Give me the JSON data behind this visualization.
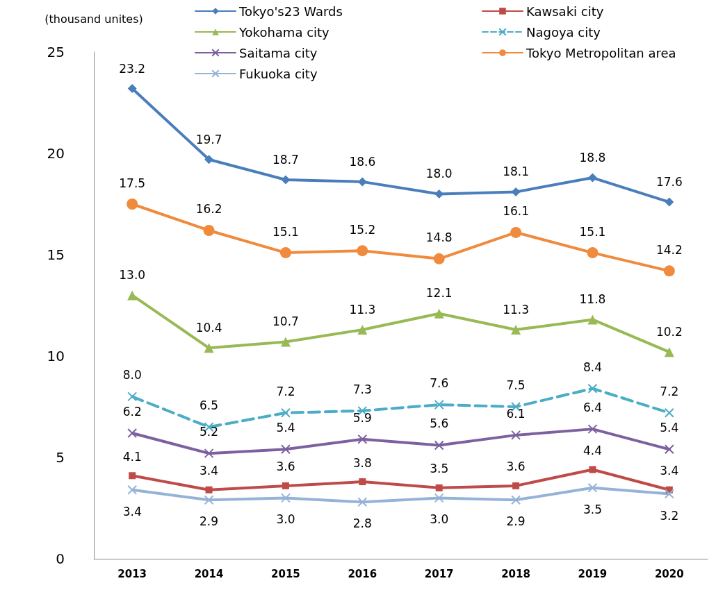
{
  "chart_data": {
    "type": "line",
    "ylabel": "(thousand unites)",
    "categories": [
      "2013",
      "2014",
      "2015",
      "2016",
      "2017",
      "2018",
      "2019",
      "2020"
    ],
    "series": [
      {
        "name": "Tokyo's23 Wards",
        "color": "#4a7ebb",
        "marker": "diamond",
        "line_style": "solid",
        "values": [
          23.2,
          19.7,
          18.7,
          18.6,
          18.0,
          18.1,
          18.8,
          17.6
        ],
        "value_labels": [
          "23.2",
          "19.7",
          "18.7",
          "18.6",
          "18.0",
          "18.1",
          "18.8",
          "17.6"
        ]
      },
      {
        "name": "Kawsaki city",
        "color": "#be4b48",
        "marker": "square",
        "line_style": "solid",
        "values": [
          4.1,
          3.4,
          3.6,
          3.8,
          3.5,
          3.6,
          4.4,
          3.4
        ],
        "value_labels": [
          "4.1",
          "3.4",
          "3.6",
          "3.8",
          "3.5",
          "3.6",
          "4.4",
          "3.4"
        ]
      },
      {
        "name": "Yokohama city",
        "color": "#98b954",
        "marker": "triangle",
        "line_style": "solid",
        "values": [
          13.0,
          10.4,
          10.7,
          11.3,
          12.1,
          11.3,
          11.8,
          10.2
        ],
        "value_labels": [
          "13.0",
          "10.4",
          "10.7",
          "11.3",
          "12.1",
          "11.3",
          "11.8",
          "10.2"
        ]
      },
      {
        "name": "Nagoya city",
        "color": "#4bacc6",
        "marker": "cross",
        "line_style": "dashed",
        "values": [
          8.0,
          6.5,
          7.2,
          7.3,
          7.6,
          7.5,
          8.4,
          7.2
        ],
        "value_labels": [
          "8.0",
          "6.5",
          "7.2",
          "7.3",
          "7.6",
          "7.5",
          "8.4",
          "7.2"
        ]
      },
      {
        "name": "Saitama city",
        "color": "#7d60a0",
        "marker": "cross",
        "line_style": "solid",
        "values": [
          6.2,
          5.2,
          5.4,
          5.9,
          5.6,
          6.1,
          6.4,
          5.4
        ],
        "value_labels": [
          "6.2",
          "5.2",
          "5.4",
          "5.9",
          "5.6",
          "6.1",
          "6.4",
          "5.4"
        ]
      },
      {
        "name": "Tokyo Metropolitan area",
        "color": "#f08a3c",
        "marker": "circle",
        "line_style": "solid",
        "values": [
          17.5,
          16.2,
          15.1,
          15.2,
          14.8,
          16.1,
          15.1,
          14.2
        ],
        "value_labels": [
          "17.5",
          "16.2",
          "15.1",
          "15.2",
          "14.8",
          "16.1",
          "15.1",
          "14.2"
        ]
      },
      {
        "name": "Fukuoka city",
        "color": "#95b3d7",
        "marker": "cross",
        "line_style": "solid",
        "values": [
          3.4,
          2.9,
          3.0,
          2.8,
          3.0,
          2.9,
          3.5,
          3.2
        ],
        "value_labels": [
          "3.4",
          "2.9",
          "3.0",
          "2.8",
          "3.0",
          "2.9",
          "3.5",
          "3.2"
        ]
      }
    ],
    "ylim": [
      0,
      25
    ],
    "yticks": [
      0,
      5,
      10,
      15,
      20,
      25
    ],
    "grid": false,
    "legend": "top"
  }
}
